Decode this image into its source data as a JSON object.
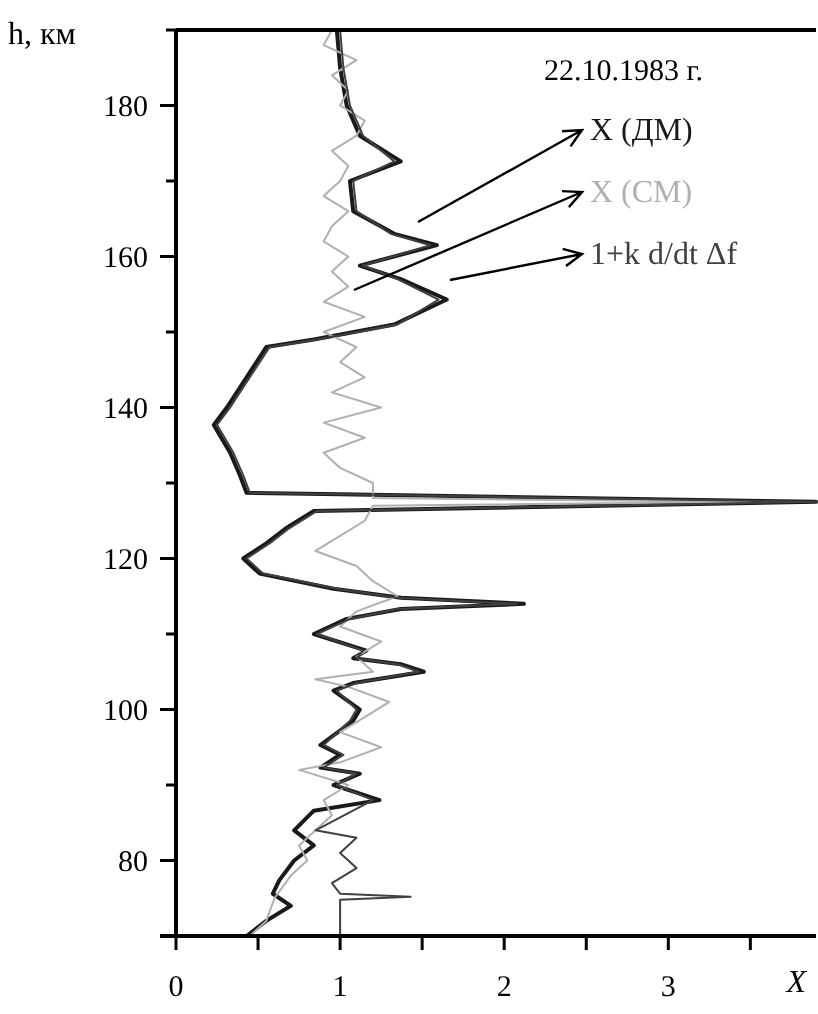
{
  "chart_data": {
    "type": "line",
    "xlabel": "X",
    "ylabel": "h, км",
    "legend_title": "22.10.1983 г.",
    "legend": "top right",
    "grid": false,
    "line_style": "solid",
    "xlim": [
      0,
      3.9
    ],
    "xticks": [
      0,
      {
        "value": 0.5,
        "label": null
      },
      1,
      {
        "value": 1.5,
        "label": null
      },
      2,
      {
        "value": 2.5,
        "label": null
      },
      3,
      {
        "value": 3.5,
        "label": null
      }
    ],
    "ylim": [
      70,
      190
    ],
    "yticks": [
      80,
      {
        "value": 90,
        "label": null
      },
      100,
      {
        "value": 110,
        "label": null
      },
      120,
      {
        "value": 130,
        "label": null
      },
      140,
      {
        "value": 150,
        "label": null
      },
      160,
      {
        "value": 170,
        "label": null
      },
      180,
      {
        "value": 190,
        "label": null
      }
    ],
    "series": [
      {
        "name": "X  (ДМ)",
        "color": "#1a1a1a",
        "x": [
          0.43,
          0.55,
          0.7,
          0.59,
          0.63,
          0.72,
          0.84,
          0.72,
          0.84,
          1.24,
          0.96,
          1.12,
          0.88,
          1.0,
          0.88,
          1.08,
          1.12,
          0.96,
          1.08,
          1.51,
          1.37,
          1.08,
          1.16,
          0.84,
          1.04,
          1.37,
          2.12,
          1.37,
          0.96,
          0.51,
          0.41,
          0.55,
          0.67,
          0.84,
          3.9,
          1.0,
          0.43,
          0.39,
          0.33,
          0.23,
          0.31,
          0.43,
          0.55,
          0.84,
          1.33,
          1.65,
          1.37,
          1.12,
          1.59,
          1.33,
          1.08,
          1.06,
          1.37,
          1.12,
          1.04,
          1.0,
          0.98
        ],
        "values": [
          70,
          72,
          74,
          75.6,
          77.4,
          80,
          82,
          84,
          86.6,
          88,
          90,
          91.5,
          92.3,
          94,
          95.3,
          98.5,
          100,
          102.5,
          103.5,
          105,
          106,
          106.8,
          107.8,
          110,
          112,
          113.3,
          114,
          114.8,
          116,
          118,
          120,
          122,
          124,
          126.3,
          127.5,
          128.5,
          128.7,
          131,
          134,
          137.7,
          140,
          144,
          148,
          149,
          151,
          154.3,
          157,
          158.8,
          161.5,
          163,
          166,
          170,
          172.6,
          176,
          180,
          185,
          190
        ]
      },
      {
        "name": "X  (СМ)",
        "color": "#b0b0b0",
        "x": [
          0.45,
          0.55,
          0.6,
          0.7,
          0.8,
          0.75,
          0.85,
          0.95,
          0.9,
          1.05,
          0.75,
          1.0,
          1.25,
          1.0,
          1.15,
          1.3,
          1.05,
          0.85,
          1.2,
          1.1,
          1.25,
          1.0,
          1.1,
          1.35,
          1.2,
          1.1,
          0.85,
          1.0,
          1.15,
          1.2,
          3.5,
          1.2,
          1.2,
          1.0,
          0.9,
          1.15,
          0.9,
          1.25,
          0.95,
          1.15,
          1.0,
          1.1,
          0.9,
          1.15,
          0.9,
          1.05,
          0.95,
          1.05,
          0.9,
          0.95,
          1.05,
          0.9,
          1.0,
          1.05,
          0.95,
          1.1,
          1.15,
          1.0,
          1.05,
          0.95,
          1.1,
          0.9,
          0.95
        ],
        "values": [
          70,
          72,
          75,
          78,
          80,
          82,
          84,
          86,
          88,
          90,
          92,
          93,
          95,
          97,
          99,
          101,
          103,
          104,
          105,
          107,
          109,
          111,
          113,
          115,
          117,
          119,
          121,
          123,
          125,
          127,
          127.5,
          128,
          130,
          132,
          134,
          136,
          138,
          140,
          142,
          144,
          146,
          148,
          150,
          152,
          154,
          156,
          158,
          160,
          162,
          164,
          166,
          168,
          170,
          172,
          174,
          176,
          178,
          180,
          182,
          184,
          186,
          188,
          190
        ]
      },
      {
        "name": "1+k d/dt Δf",
        "color": "#404040",
        "x": [
          1.0,
          1.0,
          1.43,
          1.0,
          0.95,
          1.1,
          1.0,
          1.1,
          0.85,
          1.2,
          0.98,
          1.1,
          0.9,
          1.02,
          0.9,
          1.06,
          1.1,
          0.98,
          1.1,
          1.48,
          1.35,
          1.1,
          1.14,
          0.86,
          1.06,
          1.35,
          2.08,
          1.35,
          0.98,
          0.53,
          0.43,
          0.57,
          0.69,
          0.86,
          3.9,
          1.02,
          0.45,
          0.41,
          0.35,
          0.25,
          0.33,
          0.45,
          0.57,
          0.86,
          1.35,
          1.6,
          1.35,
          1.14,
          1.55,
          1.31,
          1.1,
          1.08,
          1.33,
          1.14,
          1.06,
          1.02,
          1.0
        ],
        "values": [
          70,
          74.8,
          75.2,
          75.6,
          77,
          79,
          81,
          83,
          84,
          88,
          90,
          91.5,
          92.3,
          94,
          95.3,
          98.5,
          100,
          102.5,
          103.5,
          105,
          106,
          106.8,
          107.8,
          110,
          112,
          113.3,
          114,
          114.8,
          116,
          118,
          120,
          122,
          124,
          126.3,
          127.5,
          128.5,
          128.7,
          131,
          134,
          137.7,
          140,
          144,
          148,
          149,
          151,
          154.3,
          157,
          158.8,
          161.5,
          163,
          166,
          170,
          172.6,
          176,
          180,
          185,
          190
        ]
      }
    ]
  }
}
